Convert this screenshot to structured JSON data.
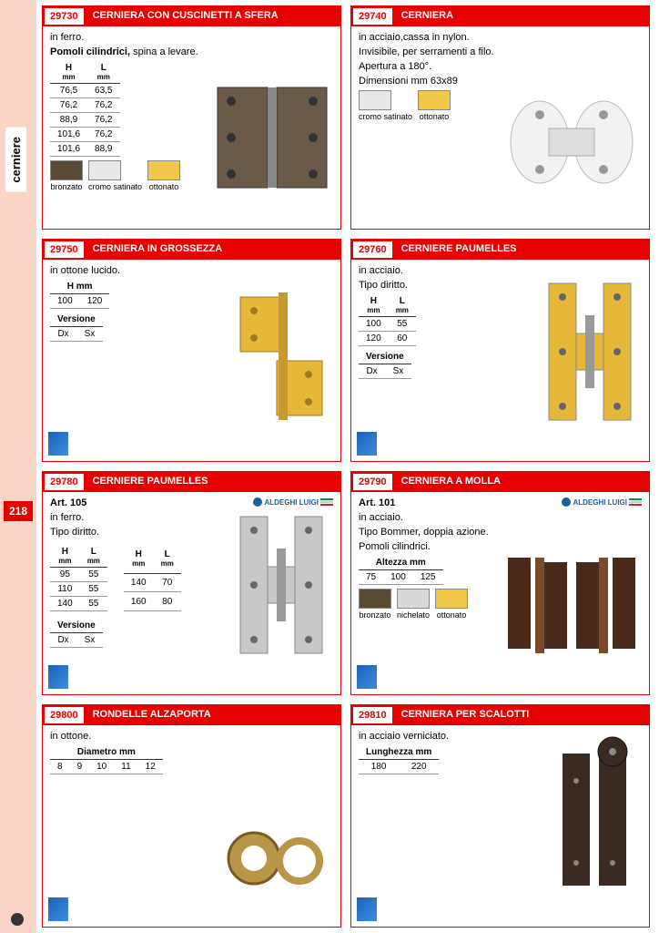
{
  "sidebar": {
    "label": "cerniere",
    "page": "218"
  },
  "cards": [
    {
      "code": "29730",
      "title": "CERNIERA CON CUSCINETTI A SFERA",
      "desc_pre": "in ferro.",
      "desc_bold": "Pomoli cilindrici,",
      "desc_post": " spina a levare.",
      "tbl": {
        "h1": "H",
        "h1u": "mm",
        "h2": "L",
        "h2u": "mm",
        "rows": [
          [
            "76,5",
            "63,5"
          ],
          [
            "76,2",
            "76,2"
          ],
          [
            "88,9",
            "76,2"
          ],
          [
            "101,6",
            "76,2"
          ],
          [
            "101,6",
            "88,9"
          ]
        ]
      },
      "swatches": [
        {
          "label": "bronzato",
          "color": "#5b4a33"
        },
        {
          "label": "cromo satinato",
          "color": "#e8e8e8"
        },
        {
          "label": "ottonato",
          "color": "#f2c84b"
        }
      ],
      "img": "butt-hinge",
      "img_color": "#6b5a47"
    },
    {
      "code": "29740",
      "title": "CERNIERA",
      "lines": [
        "in acciaio,cassa in nylon.",
        "Invisibile, per serramenti a filo.",
        "Apertura a 180°.",
        "Dimensioni mm 63x89"
      ],
      "swatches": [
        {
          "label": "cromo satinato",
          "color": "#e8e8e8"
        },
        {
          "label": "ottonato",
          "color": "#f2c84b"
        }
      ],
      "img": "conceal-hinge",
      "img_color": "#f2f2f2"
    },
    {
      "code": "29750",
      "title": "CERNIERA IN GROSSEZZA",
      "lines": [
        "in ottone lucido."
      ],
      "tbl": {
        "h1": "H mm",
        "rows": [
          [
            "100",
            "120"
          ]
        ]
      },
      "ver": {
        "label": "Versione",
        "rows": [
          [
            "Dx",
            "Sx"
          ]
        ]
      },
      "img": "lift-hinge",
      "img_color": "#e6b83a",
      "bag": true
    },
    {
      "code": "29760",
      "title": "CERNIERE PAUMELLES",
      "lines": [
        "in acciaio.",
        "Tipo diritto."
      ],
      "tbl": {
        "h1": "H",
        "h1u": "mm",
        "h2": "L",
        "h2u": "mm",
        "rows": [
          [
            "100",
            "55"
          ],
          [
            "120",
            "60"
          ]
        ]
      },
      "ver": {
        "label": "Versione",
        "rows": [
          [
            "Dx",
            "Sx"
          ]
        ]
      },
      "img": "h-hinge",
      "img_color": "#e6b83a",
      "bag": true
    },
    {
      "code": "29780",
      "title": "CERNIERE PAUMELLES",
      "art": "Art. 105",
      "lines": [
        "in ferro.",
        "Tipo diritto."
      ],
      "dbl_tbl": {
        "h": [
          "H",
          "L",
          "H",
          "L"
        ],
        "u": "mm",
        "rows": [
          [
            "95",
            "55",
            "140",
            "70"
          ],
          [
            "110",
            "55",
            "160",
            "80"
          ],
          [
            "140",
            "55",
            "",
            ""
          ]
        ]
      },
      "ver": {
        "label": "Versione",
        "rows": [
          [
            "Dx",
            "Sx"
          ]
        ]
      },
      "brand": "ALDEGHI LUIGI",
      "img": "h-hinge",
      "img_color": "#c8c8c8",
      "bag": true
    },
    {
      "code": "29790",
      "title": "CERNIERA A MOLLA",
      "art": "Art. 101",
      "lines": [
        "in acciaio.",
        "Tipo Bommer, doppia azione.",
        "Pomoli cilindrici."
      ],
      "tbl": {
        "h1": "Altezza mm",
        "rows": [
          [
            "75",
            "100",
            "125"
          ]
        ]
      },
      "swatches": [
        {
          "label": "bronzato",
          "color": "#5b4a33"
        },
        {
          "label": "nichelato",
          "color": "#d8d8d8"
        },
        {
          "label": "ottonato",
          "color": "#f2c84b"
        }
      ],
      "brand": "ALDEGHI LUIGI",
      "img": "spring-hinge",
      "img_color": "#4a2a1a",
      "bag": true
    },
    {
      "code": "29800",
      "title": "RONDELLE  ALZAPORTA",
      "lines": [
        "in ottone."
      ],
      "tbl": {
        "h1": "Diametro mm",
        "rows": [
          [
            "8",
            "9",
            "10",
            "11",
            "12"
          ]
        ]
      },
      "img": "washers",
      "img_color": "#b89548",
      "bag": true
    },
    {
      "code": "29810",
      "title": "CERNIERA PER SCALOTTI",
      "lines": [
        "in acciaio verniciato."
      ],
      "tbl": {
        "h1": "Lunghezza mm",
        "rows": [
          [
            "180",
            "220"
          ]
        ]
      },
      "img": "strap-hinge",
      "img_color": "#3a2a22",
      "bag": true
    }
  ]
}
